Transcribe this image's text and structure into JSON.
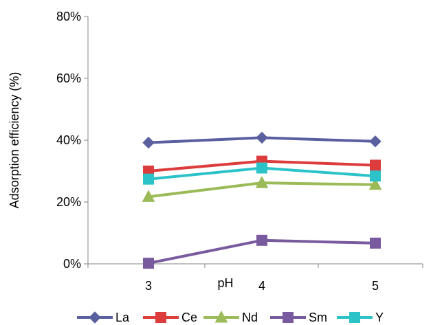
{
  "chart_data": {
    "type": "line",
    "title": "",
    "xlabel": "pH",
    "ylabel": "Adsorption efficiency (%)",
    "categories": [
      "3",
      "4",
      "5"
    ],
    "ylim": [
      0,
      80
    ],
    "y_ticks": [
      0,
      20,
      40,
      60,
      80
    ],
    "y_tick_labels": [
      "0%",
      "20%",
      "40%",
      "60%",
      "80%"
    ],
    "grid": false,
    "legend_position": "bottom",
    "series": [
      {
        "name": "La",
        "values": [
          39.2,
          40.8,
          39.6
        ],
        "color": "#5a5fa0",
        "marker": "diamond"
      },
      {
        "name": "Ce",
        "values": [
          30.0,
          33.2,
          31.9
        ],
        "color": "#dc3c3c",
        "marker": "square"
      },
      {
        "name": "Nd",
        "values": [
          21.7,
          26.2,
          25.6
        ],
        "color": "#9bbb59",
        "marker": "triangle"
      },
      {
        "name": "Sm",
        "values": [
          0.2,
          7.6,
          6.7
        ],
        "color": "#7a5a9e",
        "marker": "square"
      },
      {
        "name": "Y",
        "values": [
          27.4,
          31.0,
          28.4
        ],
        "color": "#2cc3c8",
        "marker": "square"
      }
    ]
  }
}
